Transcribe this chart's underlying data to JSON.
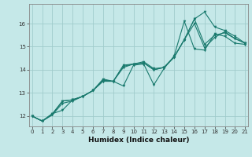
{
  "xlabel": "Humidex (Indice chaleur)",
  "bg_color": "#c5e8e8",
  "grid_color": "#a0cccc",
  "line_color": "#1a7a6e",
  "xlim": [
    -0.3,
    21.3
  ],
  "ylim": [
    11.55,
    16.85
  ],
  "xticks": [
    0,
    1,
    2,
    3,
    4,
    5,
    6,
    7,
    8,
    9,
    10,
    11,
    12,
    13,
    14,
    15,
    16,
    17,
    18,
    19,
    20,
    21
  ],
  "yticks": [
    12,
    13,
    14,
    15,
    16
  ],
  "series": [
    {
      "x": [
        0,
        1,
        2,
        3,
        4,
        5,
        6,
        7,
        8,
        9,
        10,
        11,
        12,
        13,
        14,
        15,
        16,
        17,
        18,
        19,
        20,
        21
      ],
      "y": [
        12.0,
        11.78,
        12.1,
        12.25,
        12.7,
        12.85,
        13.1,
        13.55,
        13.5,
        13.3,
        14.2,
        14.25,
        13.35,
        14.05,
        14.6,
        16.1,
        14.9,
        14.85,
        15.55,
        15.45,
        15.15,
        15.1
      ]
    },
    {
      "x": [
        0,
        1,
        2,
        3,
        4,
        5,
        6,
        7,
        8,
        9,
        10,
        11,
        12,
        13,
        14,
        15,
        16,
        17,
        18,
        19,
        20,
        21
      ],
      "y": [
        12.0,
        11.78,
        12.05,
        12.65,
        12.7,
        12.85,
        13.1,
        13.6,
        13.5,
        14.15,
        14.25,
        14.3,
        14.0,
        14.1,
        14.55,
        15.3,
        16.2,
        15.1,
        15.5,
        15.6,
        15.35,
        15.15
      ]
    },
    {
      "x": [
        0,
        1,
        2,
        3,
        4,
        5,
        6,
        7,
        8,
        9,
        10,
        11,
        12,
        13,
        14,
        15,
        16,
        17,
        18,
        19,
        20,
        21
      ],
      "y": [
        12.0,
        11.78,
        12.05,
        12.55,
        12.65,
        12.85,
        13.1,
        13.55,
        13.5,
        14.1,
        14.25,
        14.35,
        14.05,
        14.1,
        14.55,
        15.3,
        16.2,
        16.5,
        15.85,
        15.7,
        15.45,
        15.15
      ]
    },
    {
      "x": [
        0,
        1,
        2,
        3,
        4,
        5,
        6,
        7,
        8,
        9,
        10,
        11,
        12,
        13,
        14,
        15,
        16,
        17,
        18,
        19,
        20,
        21
      ],
      "y": [
        12.0,
        11.78,
        12.1,
        12.65,
        12.7,
        12.85,
        13.1,
        13.5,
        13.5,
        14.2,
        14.25,
        14.3,
        14.0,
        14.1,
        14.55,
        15.3,
        16.0,
        14.95,
        15.4,
        15.65,
        15.35,
        15.15
      ]
    }
  ]
}
